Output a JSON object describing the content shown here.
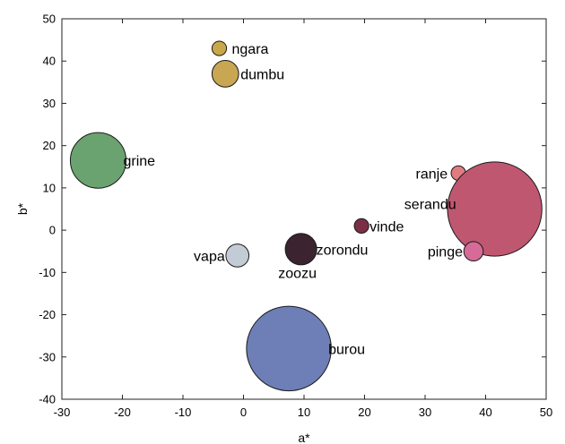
{
  "chart_data": {
    "type": "scatter",
    "xlabel": "a*",
    "ylabel": "b*",
    "xlim": [
      -30,
      50
    ],
    "ylim": [
      -40,
      50
    ],
    "xticks": [
      "-30",
      "-20",
      "-10",
      "0",
      "10",
      "20",
      "30",
      "40",
      "50"
    ],
    "yticks": [
      "50",
      "40",
      "30",
      "20",
      "10",
      "0",
      "-10",
      "-20",
      "-30",
      "-40"
    ],
    "grid": false,
    "points": [
      {
        "label": "ngara",
        "x": -4,
        "y": 43,
        "size": 1.2,
        "color": "#c8a84b"
      },
      {
        "label": "dumbu",
        "x": -3,
        "y": 37,
        "size": 2.2,
        "color": "#c9a652"
      },
      {
        "label": "grine",
        "x": -24,
        "y": 16.5,
        "size": 4.6,
        "color": "#6aa36f"
      },
      {
        "label": "ranje",
        "x": 35.5,
        "y": 13.5,
        "size": 1.2,
        "color": "#e07c80"
      },
      {
        "label": "serandu",
        "x": 41.5,
        "y": 5,
        "size": 7.8,
        "color": "#c05770"
      },
      {
        "label": "vinde",
        "x": 19.5,
        "y": 1,
        "size": 1.2,
        "color": "#7a2f45"
      },
      {
        "label": "pinge",
        "x": 38,
        "y": -5,
        "size": 1.6,
        "color": "#d66b98"
      },
      {
        "label": "vapa",
        "x": -1,
        "y": -6,
        "size": 1.9,
        "color": "#c3ccd5"
      },
      {
        "label": "zorondu",
        "x": 9.5,
        "y": -4.5,
        "size": 2.6,
        "color": "#3b2330"
      },
      {
        "label": "zoozu",
        "x": 9.5,
        "y": -4.5,
        "size": 0,
        "color": "#3b2330"
      },
      {
        "label": "burou",
        "x": 7.5,
        "y": -28,
        "size": 7.0,
        "color": "#6d7fb6"
      }
    ]
  }
}
